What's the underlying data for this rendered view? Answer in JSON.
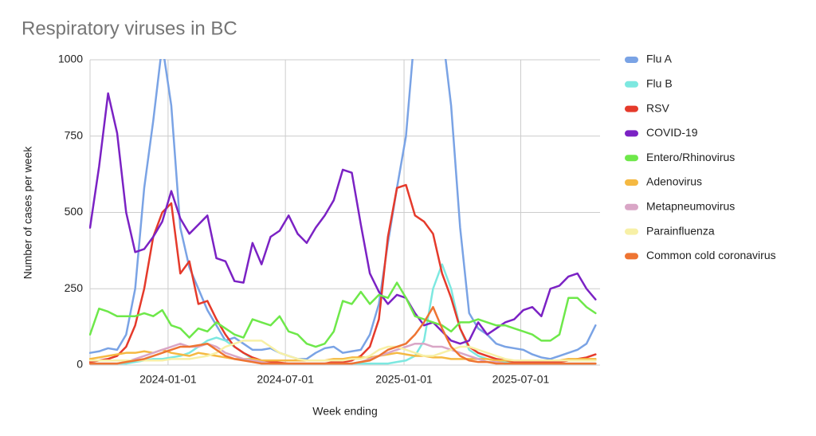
{
  "chart_data": {
    "type": "line",
    "title": "Respiratory viruses in BC",
    "x_label": "Week ending",
    "y_label": "Number of cases per week",
    "x": [
      "2023-09-02",
      "2023-09-16",
      "2023-09-30",
      "2023-10-14",
      "2023-10-28",
      "2023-11-11",
      "2023-11-25",
      "2023-12-09",
      "2023-12-23",
      "2024-01-06",
      "2024-01-20",
      "2024-02-03",
      "2024-02-17",
      "2024-03-02",
      "2024-03-16",
      "2024-03-30",
      "2024-04-13",
      "2024-04-27",
      "2024-05-11",
      "2024-05-25",
      "2024-06-08",
      "2024-06-22",
      "2024-07-06",
      "2024-07-20",
      "2024-08-03",
      "2024-08-17",
      "2024-08-31",
      "2024-09-14",
      "2024-09-28",
      "2024-10-12",
      "2024-10-26",
      "2024-11-09",
      "2024-11-23",
      "2024-12-07",
      "2024-12-21",
      "2025-01-04",
      "2025-01-18",
      "2025-02-01",
      "2025-02-15",
      "2025-03-01",
      "2025-03-15",
      "2025-03-29",
      "2025-04-12",
      "2025-04-26",
      "2025-05-10",
      "2025-05-24",
      "2025-06-07",
      "2025-06-21",
      "2025-07-05",
      "2025-07-19",
      "2025-08-02",
      "2025-08-16",
      "2025-08-30",
      "2025-09-13",
      "2025-09-27",
      "2025-10-11",
      "2025-10-25"
    ],
    "xlim": [
      "2023-09-02",
      "2025-11-01"
    ],
    "xticks": [
      "2024-01-01",
      "2024-07-01",
      "2025-01-01",
      "2025-07-01"
    ],
    "ylim": [
      0,
      1000
    ],
    "yticks": [
      0,
      250,
      500,
      750,
      1000
    ],
    "grid": true,
    "legend": "right",
    "series": [
      {
        "name": "Flu A",
        "color": "#7aa3e5",
        "values": [
          40,
          45,
          55,
          50,
          100,
          250,
          580,
          800,
          1050,
          850,
          450,
          320,
          250,
          180,
          130,
          80,
          90,
          70,
          50,
          50,
          55,
          40,
          30,
          20,
          20,
          40,
          55,
          60,
          40,
          45,
          50,
          100,
          200,
          400,
          580,
          750,
          1100,
          1300,
          1300,
          1100,
          850,
          450,
          170,
          120,
          100,
          70,
          60,
          55,
          50,
          35,
          25,
          20,
          30,
          40,
          50,
          70,
          130
        ]
      },
      {
        "name": "Flu B",
        "color": "#7de8e0",
        "values": [
          5,
          5,
          5,
          5,
          5,
          10,
          15,
          20,
          20,
          25,
          30,
          40,
          60,
          80,
          90,
          80,
          60,
          40,
          20,
          15,
          10,
          5,
          5,
          5,
          5,
          5,
          5,
          5,
          5,
          5,
          5,
          5,
          5,
          5,
          10,
          15,
          30,
          80,
          250,
          330,
          250,
          120,
          50,
          30,
          20,
          15,
          10,
          8,
          5,
          5,
          5,
          5,
          5,
          5,
          5,
          5,
          5
        ]
      },
      {
        "name": "RSV",
        "color": "#e53a2b",
        "values": [
          10,
          15,
          20,
          30,
          60,
          130,
          250,
          420,
          500,
          530,
          300,
          340,
          200,
          210,
          150,
          100,
          60,
          40,
          25,
          15,
          10,
          8,
          5,
          5,
          5,
          5,
          5,
          10,
          10,
          15,
          30,
          60,
          150,
          420,
          580,
          590,
          490,
          470,
          430,
          300,
          220,
          120,
          60,
          40,
          30,
          20,
          15,
          10,
          10,
          10,
          10,
          10,
          10,
          15,
          20,
          25,
          35
        ]
      },
      {
        "name": "COVID-19",
        "color": "#7b22c4",
        "values": [
          450,
          650,
          890,
          760,
          500,
          370,
          380,
          420,
          470,
          570,
          480,
          430,
          460,
          490,
          350,
          340,
          275,
          270,
          400,
          330,
          420,
          440,
          490,
          430,
          400,
          450,
          490,
          540,
          640,
          630,
          460,
          300,
          240,
          200,
          230,
          220,
          170,
          130,
          140,
          110,
          80,
          70,
          80,
          140,
          100,
          120,
          140,
          150,
          180,
          190,
          160,
          250,
          260,
          290,
          300,
          250,
          215
        ]
      },
      {
        "name": "Entero/Rhinovirus",
        "color": "#6ee84a",
        "values": [
          100,
          185,
          175,
          160,
          160,
          160,
          170,
          160,
          180,
          130,
          120,
          90,
          120,
          110,
          140,
          120,
          100,
          90,
          150,
          140,
          130,
          160,
          110,
          100,
          70,
          60,
          70,
          110,
          210,
          200,
          240,
          200,
          230,
          220,
          270,
          220,
          160,
          150,
          140,
          130,
          110,
          140,
          140,
          150,
          140,
          130,
          130,
          120,
          110,
          100,
          80,
          80,
          100,
          220,
          220,
          190,
          170
        ]
      },
      {
        "name": "Adenovirus",
        "color": "#f5b942",
        "values": [
          20,
          25,
          30,
          35,
          40,
          40,
          45,
          40,
          50,
          40,
          35,
          30,
          40,
          35,
          30,
          25,
          20,
          20,
          20,
          15,
          15,
          15,
          15,
          15,
          15,
          15,
          15,
          20,
          20,
          25,
          25,
          25,
          30,
          35,
          40,
          35,
          30,
          30,
          25,
          25,
          20,
          20,
          20,
          20,
          20,
          15,
          15,
          15,
          15,
          15,
          15,
          15,
          15,
          20,
          20,
          20,
          20
        ]
      },
      {
        "name": "Metapneumovirus",
        "color": "#d9a6c6",
        "values": [
          5,
          5,
          5,
          5,
          10,
          20,
          30,
          40,
          50,
          60,
          70,
          60,
          60,
          70,
          60,
          40,
          30,
          20,
          15,
          10,
          5,
          5,
          5,
          5,
          5,
          5,
          5,
          5,
          5,
          5,
          10,
          20,
          30,
          40,
          50,
          60,
          70,
          70,
          60,
          60,
          50,
          40,
          30,
          20,
          10,
          10,
          5,
          5,
          5,
          5,
          5,
          5,
          5,
          5,
          5,
          5,
          5
        ]
      },
      {
        "name": "Parainfluenza",
        "color": "#f7f0a6",
        "values": [
          15,
          15,
          15,
          15,
          15,
          15,
          15,
          15,
          15,
          20,
          20,
          20,
          25,
          30,
          40,
          60,
          70,
          80,
          80,
          80,
          60,
          40,
          30,
          20,
          15,
          15,
          15,
          15,
          15,
          20,
          20,
          30,
          50,
          60,
          60,
          50,
          40,
          30,
          30,
          40,
          50,
          60,
          60,
          50,
          40,
          30,
          20,
          15,
          15,
          15,
          15,
          15,
          15,
          15,
          15,
          15,
          15
        ]
      },
      {
        "name": "Common cold coronavirus",
        "color": "#ee7432",
        "values": [
          5,
          5,
          5,
          5,
          10,
          15,
          20,
          30,
          40,
          50,
          60,
          60,
          65,
          70,
          50,
          30,
          20,
          15,
          10,
          5,
          5,
          5,
          5,
          5,
          5,
          5,
          5,
          5,
          5,
          5,
          10,
          15,
          30,
          50,
          60,
          70,
          100,
          140,
          190,
          120,
          60,
          30,
          15,
          10,
          10,
          5,
          5,
          5,
          5,
          5,
          5,
          5,
          5,
          5,
          5,
          5,
          5
        ]
      }
    ]
  }
}
